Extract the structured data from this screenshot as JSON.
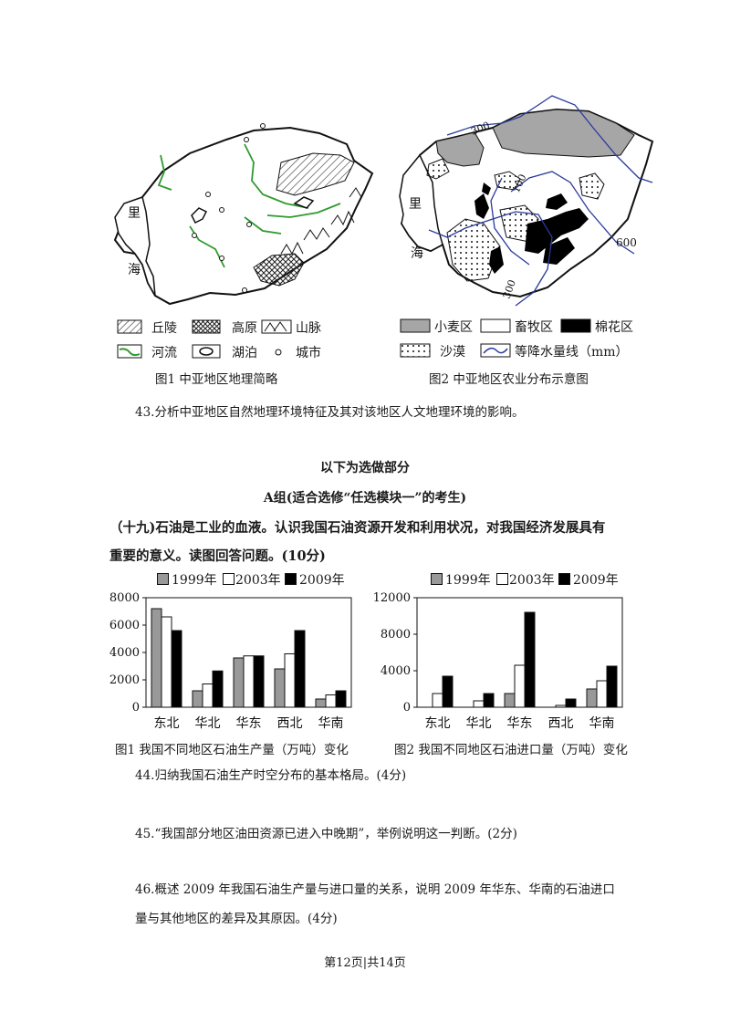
{
  "maps": {
    "map1": {
      "sea_label_1": "里",
      "sea_label_2": "海",
      "legend": [
        {
          "icon": "hatched-pattern-icon",
          "label": "丘陵"
        },
        {
          "icon": "crosshatch-pattern-icon",
          "label": "高原"
        },
        {
          "icon": "mountain-range-icon",
          "label": "山脉"
        },
        {
          "icon": "river-line-icon",
          "label": "河流"
        },
        {
          "icon": "lake-outline-icon",
          "label": "湖泊"
        },
        {
          "icon": "city-circle-icon",
          "label": "城市"
        }
      ],
      "caption": "图1  中亚地区地理简略"
    },
    "map2": {
      "sea_label_1": "里",
      "sea_label_2": "海",
      "isohyets": [
        "300",
        "100",
        "600",
        "300"
      ],
      "legend": [
        {
          "icon": "gray-fill-icon",
          "label": "小麦区"
        },
        {
          "icon": "white-fill-icon",
          "label": "畜牧区"
        },
        {
          "icon": "black-fill-icon",
          "label": "棉花区"
        },
        {
          "icon": "dotted-fill-icon",
          "label": "沙漠"
        },
        {
          "icon": "isohyet-line-icon",
          "label": "等降水量线（mm）"
        }
      ],
      "caption": "图2   中亚地区农业分布示意图"
    }
  },
  "questions": {
    "q43": "43.分析中亚地区自然地理环境特征及其对该地区人文地理环境的影响。",
    "section_title": "以下为选做部分",
    "group_title": "A组(适合选修“任选模块一”的考生)",
    "intro_1": "（十九)石油是工业的血液。认识我国石油资源开发和利用状况，对我国经济发展具有",
    "intro_2": "重要的意义。读图回答问题。(10分)",
    "q44": "44.归纳我国石油生产时空分布的基本格局。(4分)",
    "q45": "45.“我国部分地区油田资源已进入中晚期”，举例说明这一判断。(2分)",
    "q46_1": "46.概述 2009 年我国石油生产量与进口量的关系，说明 2009 年华东、华南的石油进口",
    "q46_2": "量与其他地区的差异及其原因。(4分)"
  },
  "footer": {
    "page": "第12页|共14页"
  },
  "colors": {
    "y1999": "#999999",
    "y2003": "#ffffff",
    "y2009": "#000000",
    "wheat": "#a6a6a6",
    "river": "#2d9b2d",
    "isohyet": "#2b3a9b"
  },
  "chart_data": [
    {
      "type": "bar",
      "title": "图1   我国不同地区石油生产量（万吨）变化",
      "categories": [
        "东北",
        "华北",
        "华东",
        "西北",
        "华南"
      ],
      "series": [
        {
          "name": "1999年",
          "values": [
            7200,
            1200,
            3600,
            2800,
            600
          ]
        },
        {
          "name": "2003年",
          "values": [
            6600,
            1700,
            3750,
            3900,
            900
          ]
        },
        {
          "name": "2009年",
          "values": [
            5600,
            2650,
            3750,
            5600,
            1200
          ]
        }
      ],
      "ylim": [
        0,
        8000
      ],
      "yticks": [
        "0",
        "2000",
        "4000",
        "6000",
        "8000"
      ],
      "legend": "top"
    },
    {
      "type": "bar",
      "title": "图2   我国不同地区石油进口量（万吨）变化",
      "categories": [
        "东北",
        "华北",
        "华东",
        "西北",
        "华南"
      ],
      "series": [
        {
          "name": "1999年",
          "values": [
            0,
            0,
            1500,
            0,
            2000
          ]
        },
        {
          "name": "2003年",
          "values": [
            1500,
            700,
            4600,
            200,
            2900
          ]
        },
        {
          "name": "2009年",
          "values": [
            3400,
            1500,
            10400,
            900,
            4500
          ]
        }
      ],
      "ylim": [
        0,
        12000
      ],
      "yticks": [
        "0",
        "4000",
        "8000",
        "12000"
      ],
      "legend": "top"
    }
  ]
}
